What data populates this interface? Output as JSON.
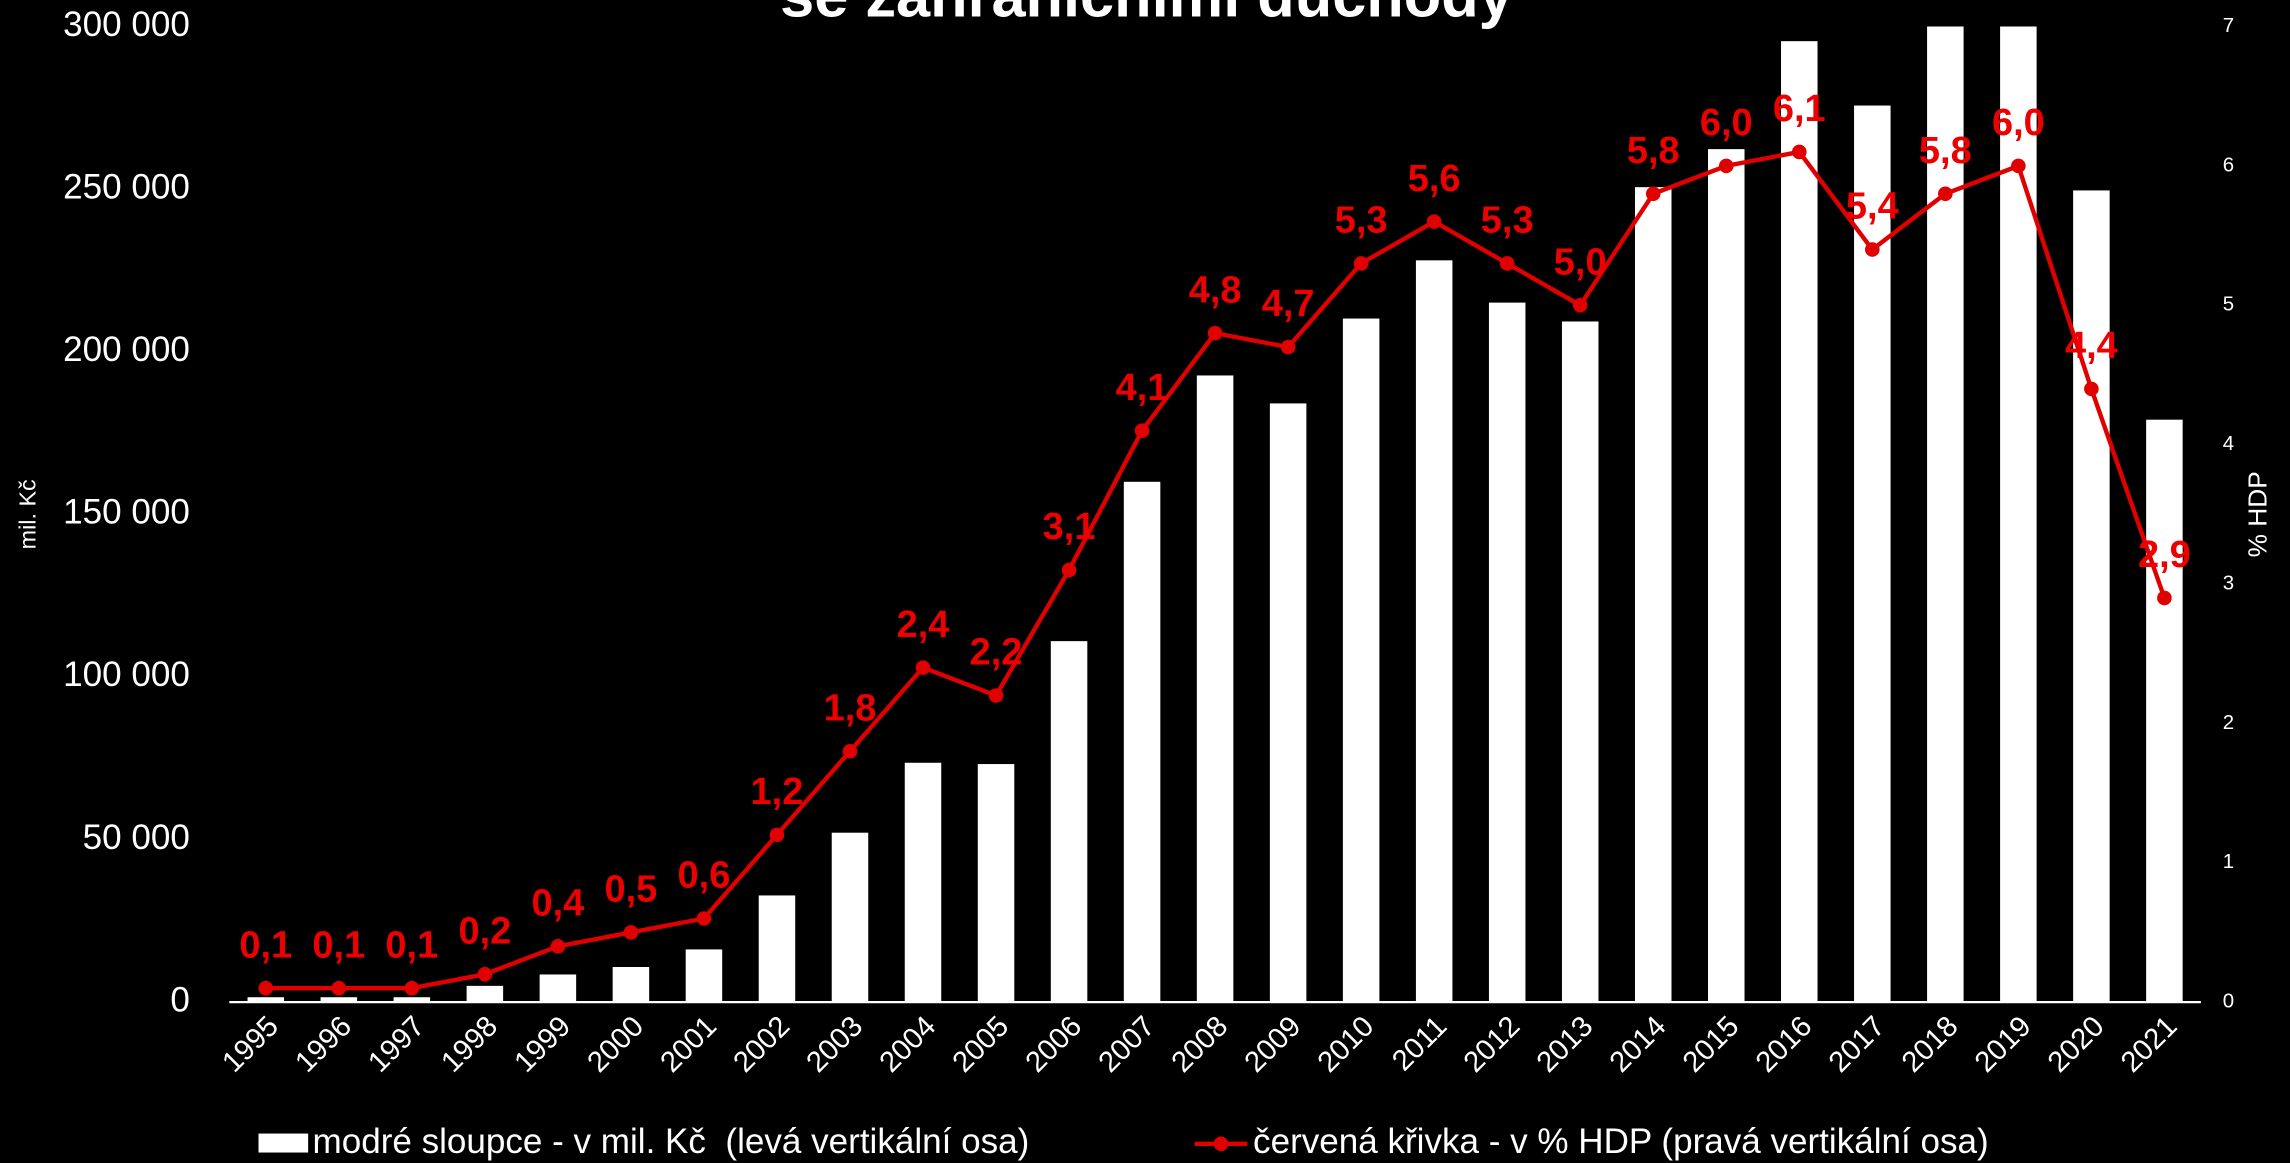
{
  "chart_data": {
    "type": "bar_line",
    "title": "se zahraničními důchody",
    "categories": [
      "1995",
      "1996",
      "1997",
      "1998",
      "1999",
      "2000",
      "2001",
      "2002",
      "2003",
      "2004",
      "2005",
      "2006",
      "2007",
      "2008",
      "2009",
      "2010",
      "2011",
      "2012",
      "2013",
      "2014",
      "2015",
      "2016",
      "2017",
      "2018",
      "2019",
      "2020",
      "2021"
    ],
    "series": [
      {
        "name": "modré sloupce - v mil. Kč  (levá vertikální osa)",
        "color": "#ffffff",
        "type": "bar",
        "values": [
          1500,
          1500,
          1500,
          5000,
          8500,
          10800,
          16200,
          32800,
          52100,
          73600,
          73200,
          111000,
          160000,
          192700,
          184100,
          210200,
          228100,
          215100,
          209300,
          250600,
          262300,
          295500,
          275700,
          305000,
          305000,
          249600,
          179100
        ]
      },
      {
        "name": "červená křivka - v % HDP (pravá vertikální osa)",
        "color": "#e00000",
        "type": "line",
        "axis": "y2",
        "values": [
          0.1,
          0.1,
          0.1,
          0.2,
          0.4,
          0.5,
          0.6,
          1.2,
          1.8,
          2.4,
          2.2,
          3.1,
          4.1,
          4.8,
          4.7,
          5.3,
          5.6,
          5.3,
          5.0,
          5.8,
          6.0,
          6.1,
          5.4,
          5.8,
          6.0,
          4.4,
          2.9
        ],
        "value_labels": [
          "0,1",
          "0,1",
          "0,1",
          "0,2",
          "0,4",
          "0,5",
          "0,6",
          "1,2",
          "1,8",
          "2,4",
          "2,2",
          "3,1",
          "4,1",
          "4,8",
          "4,7",
          "5,3",
          "5,6",
          "5,3",
          "5,0",
          "5,8",
          "6,0",
          "6,1",
          "5,4",
          "5,8",
          "6,0",
          "4,4",
          "2,9"
        ]
      }
    ],
    "ylabel": "mil. Kč",
    "y2label": "% HDP",
    "ylim": [
      0,
      300000
    ],
    "yticks": [
      0,
      {
        "value": 50000,
        "label": "50 000"
      },
      {
        "value": 100000,
        "label": "100 000"
      },
      {
        "value": 150000,
        "label": "150 000"
      },
      {
        "value": 200000,
        "label": "200 000"
      },
      {
        "value": 250000,
        "label": "250 000"
      },
      {
        "value": 300000,
        "label": "300 000"
      }
    ],
    "y2lim": [
      0,
      7
    ],
    "y2ticks": [
      0,
      1,
      2,
      3,
      4,
      5,
      6,
      7
    ],
    "legend": "bottom"
  }
}
